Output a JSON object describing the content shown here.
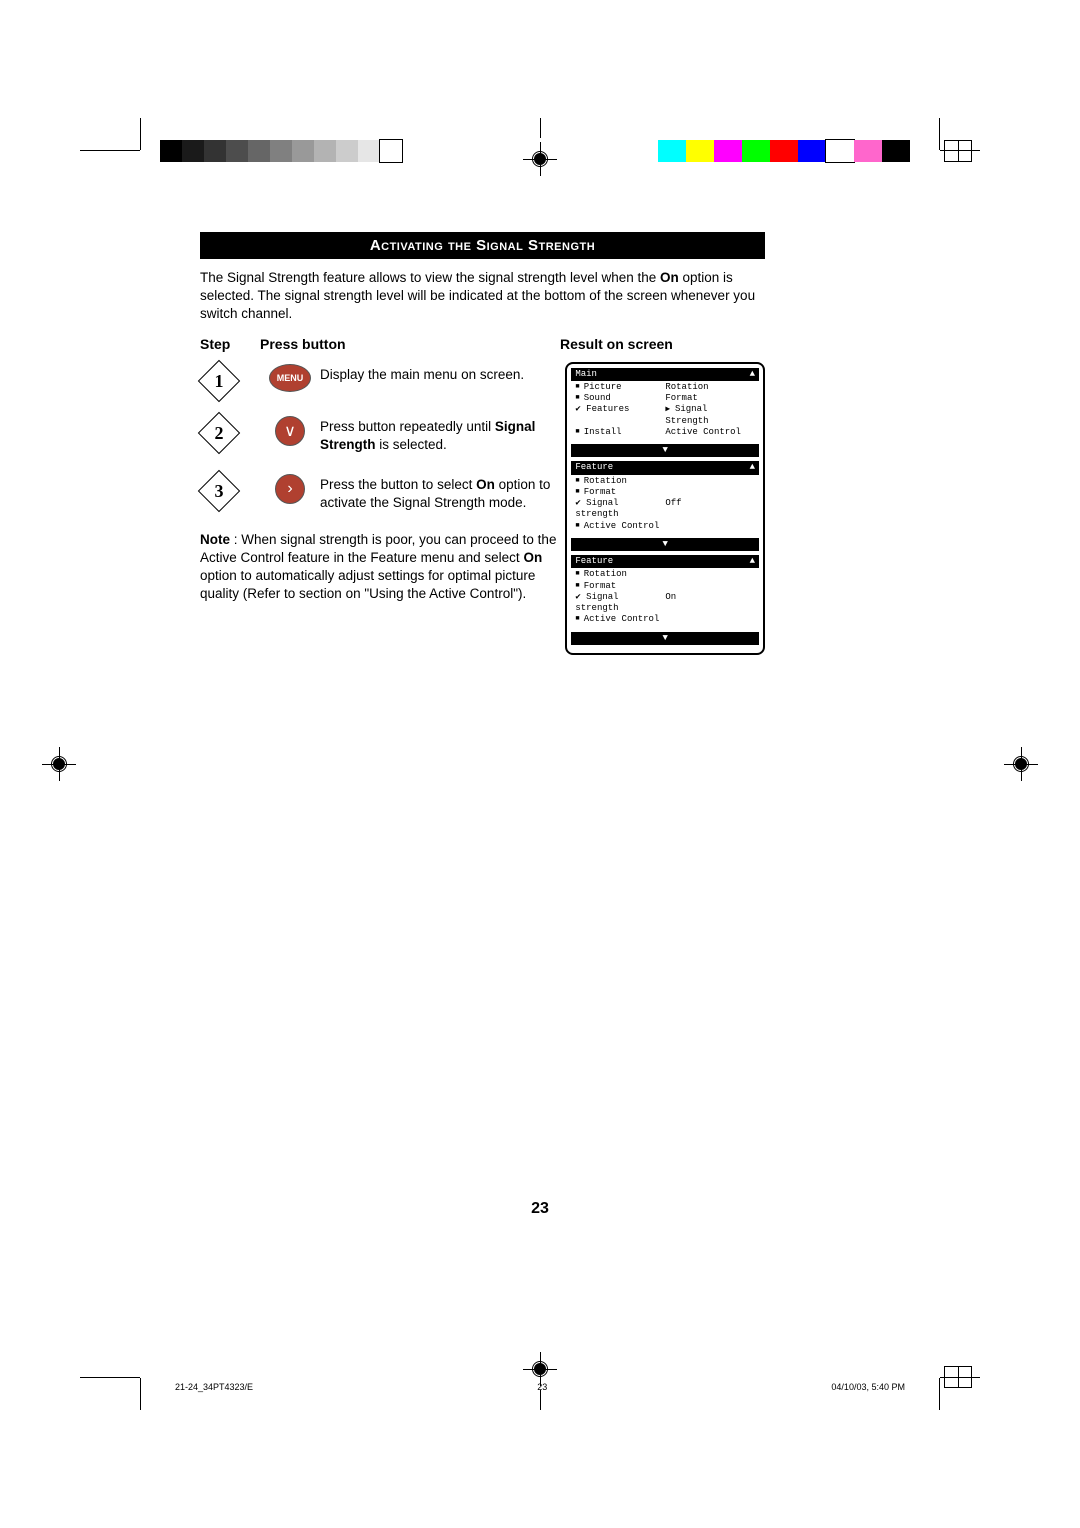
{
  "title": "Activating the Signal Strength",
  "intro_parts": {
    "before_bold": "The Signal Strength feature allows to view the signal strength level when the ",
    "bold1": "On",
    "after_bold": " option is selected. The signal strength level will be indicated at the bottom of the screen whenever you switch channel."
  },
  "headers": {
    "step": "Step",
    "press": "Press button",
    "result": "Result on screen"
  },
  "steps": [
    {
      "num": "1",
      "btn_label": "MENU",
      "btn_type": "menu",
      "desc": "Display the main menu on screen."
    },
    {
      "num": "2",
      "btn_label": "∨",
      "btn_type": "arrow",
      "desc_before": "Press button repeatedly until ",
      "desc_bold": "Signal Strength",
      "desc_after": " is selected."
    },
    {
      "num": "3",
      "btn_label": "›",
      "btn_type": "arrow",
      "desc_before": "Press the button to select ",
      "desc_bold": "On",
      "desc_after": " option to activate the Signal Strength mode."
    }
  ],
  "note": {
    "label": "Note",
    "before_bold": " : When signal strength is poor, you can proceed to the Active Control feature in the Feature menu and select ",
    "bold": "On",
    "after_bold": " option to automatically adjust settings for optimal picture quality  (Refer to section on \"Using the Active Control\")."
  },
  "osd1": {
    "header": "Main",
    "rows": [
      {
        "l": "Picture",
        "r": "Rotation",
        "lclass": "bullet"
      },
      {
        "l": "Sound",
        "r": "Format",
        "lclass": "bullet"
      },
      {
        "l": "Features",
        "r": "Signal Strength",
        "lclass": "sel",
        "rclass": "ptr"
      },
      {
        "l": "Install",
        "r": "Active Control",
        "lclass": "bullet"
      }
    ]
  },
  "osd2": {
    "header": "Feature",
    "rows": [
      {
        "l": "Rotation",
        "r": "",
        "lclass": "bullet"
      },
      {
        "l": "Format",
        "r": "",
        "lclass": "bullet"
      },
      {
        "l": "Signal strength",
        "r": "Off",
        "lclass": "sel"
      },
      {
        "l": "Active Control",
        "r": "",
        "lclass": "bullet"
      }
    ]
  },
  "osd3": {
    "header": "Feature",
    "rows": [
      {
        "l": "Rotation",
        "r": "",
        "lclass": "bullet"
      },
      {
        "l": "Format",
        "r": "",
        "lclass": "bullet"
      },
      {
        "l": "Signal strength",
        "r": "On",
        "lclass": "sel"
      },
      {
        "l": "Active Control",
        "r": "",
        "lclass": "bullet"
      }
    ]
  },
  "page_number": "23",
  "footer": {
    "file": "21-24_34PT4323/E",
    "page": "23",
    "datetime": "04/10/03, 5:40 PM"
  },
  "gray_swatches": [
    "#000000",
    "#1a1a1a",
    "#333333",
    "#4d4d4d",
    "#666666",
    "#808080",
    "#999999",
    "#b3b3b3",
    "#cccccc",
    "#e6e6e6",
    "#ffffff"
  ],
  "color_swatches": [
    "#00ffff",
    "#ffff00",
    "#ff00ff",
    "#00ff00",
    "#ff0000",
    "#0000ff",
    "#ffffff",
    "#ff66cc",
    "#000000"
  ],
  "arrows": {
    "up": "▲",
    "down": "▼"
  }
}
